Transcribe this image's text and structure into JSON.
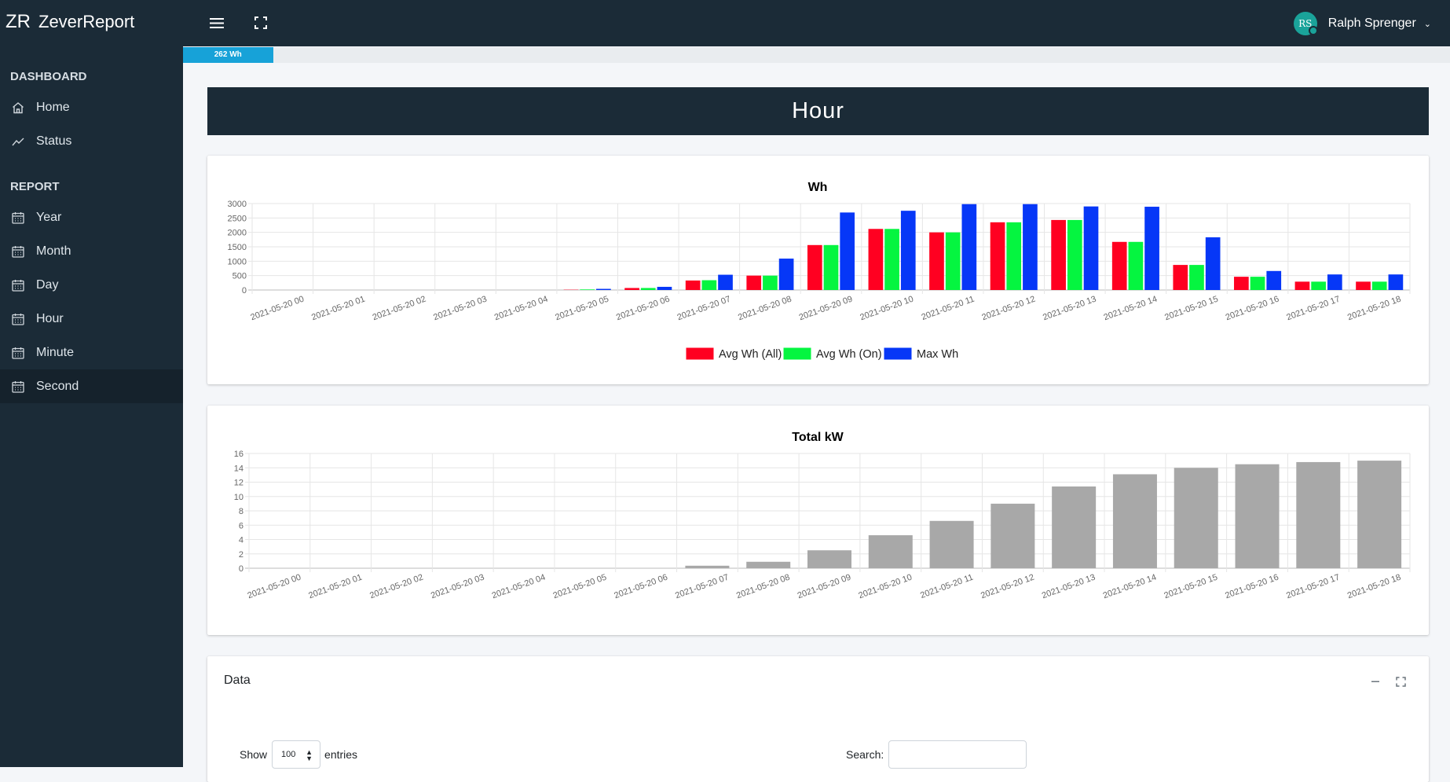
{
  "brand": {
    "logo": "ZR",
    "name": "ZeverReport"
  },
  "topbar": {
    "menu_icon": "hamburger-icon",
    "fullscreen_icon": "expand-icon"
  },
  "user": {
    "initials": "RS",
    "name": "Ralph Sprenger",
    "caret": "⌄"
  },
  "sidebar": {
    "section_dashboard": "DASHBOARD",
    "section_report": "REPORT",
    "items": [
      {
        "label": "Home",
        "icon": "home-icon"
      },
      {
        "label": "Status",
        "icon": "chart-line-icon"
      },
      {
        "label": "Year",
        "icon": "calendar-icon"
      },
      {
        "label": "Month",
        "icon": "calendar-icon"
      },
      {
        "label": "Day",
        "icon": "calendar-icon"
      },
      {
        "label": "Hour",
        "icon": "calendar-icon"
      },
      {
        "label": "Minute",
        "icon": "calendar-icon"
      },
      {
        "label": "Second",
        "icon": "calendar-icon",
        "active": true
      }
    ]
  },
  "progress": {
    "label": "262 Wh",
    "fraction": 0.071
  },
  "page_title": "Hour",
  "chart_data": [
    {
      "type": "bar",
      "title": "Wh",
      "categories": [
        "2021-05-20 00",
        "2021-05-20 01",
        "2021-05-20 02",
        "2021-05-20 03",
        "2021-05-20 04",
        "2021-05-20 05",
        "2021-05-20 06",
        "2021-05-20 07",
        "2021-05-20 08",
        "2021-05-20 09",
        "2021-05-20 10",
        "2021-05-20 11",
        "2021-05-20 12",
        "2021-05-20 13",
        "2021-05-20 14",
        "2021-05-20 15",
        "2021-05-20 16",
        "2021-05-20 17",
        "2021-05-20 18"
      ],
      "series": [
        {
          "name": "Avg Wh (All)",
          "color": "#ff0021",
          "values": [
            0,
            0,
            0,
            0,
            0,
            10,
            70,
            330,
            500,
            1560,
            2120,
            2000,
            2350,
            2430,
            1670,
            870,
            460,
            290,
            290
          ]
        },
        {
          "name": "Avg Wh (On)",
          "color": "#05f540",
          "values": [
            0,
            0,
            0,
            0,
            0,
            20,
            70,
            340,
            500,
            1560,
            2120,
            2000,
            2350,
            2430,
            1670,
            870,
            460,
            290,
            290
          ]
        },
        {
          "name": "Max Wh",
          "color": "#0637f7",
          "values": [
            0,
            0,
            0,
            0,
            0,
            40,
            110,
            530,
            1090,
            2690,
            2750,
            2980,
            2980,
            2900,
            2890,
            1830,
            660,
            540,
            540
          ]
        }
      ],
      "yticks": [
        0,
        500,
        1000,
        1500,
        2000,
        2500,
        3000
      ],
      "ylim": [
        0,
        3000
      ],
      "legend": "bottom",
      "grid": true
    },
    {
      "type": "bar",
      "title": "Total kW",
      "categories": [
        "2021-05-20 00",
        "2021-05-20 01",
        "2021-05-20 02",
        "2021-05-20 03",
        "2021-05-20 04",
        "2021-05-20 05",
        "2021-05-20 06",
        "2021-05-20 07",
        "2021-05-20 08",
        "2021-05-20 09",
        "2021-05-20 10",
        "2021-05-20 11",
        "2021-05-20 12",
        "2021-05-20 13",
        "2021-05-20 14",
        "2021-05-20 15",
        "2021-05-20 16",
        "2021-05-20 17",
        "2021-05-20 18"
      ],
      "series": [
        {
          "color": "#a8a8a8",
          "values": [
            0,
            0,
            0,
            0,
            0,
            0,
            0,
            0.35,
            0.9,
            2.5,
            4.6,
            6.6,
            9.0,
            11.4,
            13.1,
            14.0,
            14.5,
            14.8,
            15.0
          ]
        }
      ],
      "yticks": [
        0,
        2,
        4,
        6,
        8,
        10,
        12,
        14,
        16
      ],
      "ylim": [
        0,
        16
      ],
      "legend": "none",
      "grid": true
    }
  ],
  "data_card": {
    "title": "Data",
    "collapse_icon": "minus-icon",
    "maximize_icon": "expand-icon",
    "show_label": "Show",
    "entries_value": "100",
    "entries_label": "entries",
    "search_label": "Search:"
  }
}
